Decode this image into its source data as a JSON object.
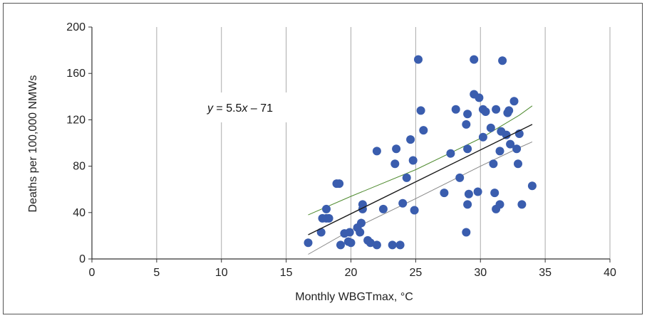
{
  "chart_data": {
    "type": "scatter",
    "title": "",
    "xlabel": "Monthly WBGTmax, °C",
    "ylabel": "Deaths per 100,000 NMWs",
    "xlim": [
      0,
      40
    ],
    "ylim": [
      0,
      200
    ],
    "x_ticks": [
      "0",
      "5",
      "10",
      "15",
      "20",
      "25",
      "30",
      "35",
      "40"
    ],
    "y_ticks": [
      "0",
      "40",
      "80",
      "120",
      "160",
      "200"
    ],
    "grid": "vertical",
    "annotation": {
      "prefix": "y",
      "middle": " = 5.5",
      "var": "x",
      "suffix": " – 71"
    },
    "regression": {
      "slope": 5.5,
      "intercept": -71,
      "x_range": [
        16.7,
        34
      ]
    },
    "confidence_upper": [
      [
        16.7,
        38
      ],
      [
        20,
        54
      ],
      [
        25,
        77
      ],
      [
        30,
        104
      ],
      [
        33,
        124
      ],
      [
        34,
        132
      ]
    ],
    "confidence_lower": [
      [
        16.7,
        4
      ],
      [
        20,
        25
      ],
      [
        25,
        52
      ],
      [
        30,
        80
      ],
      [
        33,
        96
      ],
      [
        34,
        101
      ]
    ],
    "colors": {
      "points": "#3A5DAE",
      "regression": "#1a1a1a",
      "upper_band": "#4E8A2E",
      "lower_band": "#888888",
      "grid": "#aaaaaa"
    },
    "points": [
      [
        16.7,
        14
      ],
      [
        17.7,
        23
      ],
      [
        17.8,
        35
      ],
      [
        18.1,
        43
      ],
      [
        18.1,
        35
      ],
      [
        18.3,
        35
      ],
      [
        18.9,
        65
      ],
      [
        19.1,
        65
      ],
      [
        19.2,
        12
      ],
      [
        19.5,
        22
      ],
      [
        19.8,
        15
      ],
      [
        19.9,
        23
      ],
      [
        20.0,
        14
      ],
      [
        20.5,
        27
      ],
      [
        20.7,
        23
      ],
      [
        20.8,
        31
      ],
      [
        20.9,
        43
      ],
      [
        20.9,
        47
      ],
      [
        21.3,
        16
      ],
      [
        21.5,
        14
      ],
      [
        22.0,
        93
      ],
      [
        22.0,
        12
      ],
      [
        22.5,
        43
      ],
      [
        23.2,
        12
      ],
      [
        23.4,
        82
      ],
      [
        23.5,
        95
      ],
      [
        23.8,
        12
      ],
      [
        24.0,
        48
      ],
      [
        24.3,
        70
      ],
      [
        24.6,
        103
      ],
      [
        24.8,
        85
      ],
      [
        24.9,
        42
      ],
      [
        25.2,
        172
      ],
      [
        25.4,
        128
      ],
      [
        25.6,
        111
      ],
      [
        27.2,
        57
      ],
      [
        27.7,
        91
      ],
      [
        28.1,
        129
      ],
      [
        28.4,
        70
      ],
      [
        28.9,
        116
      ],
      [
        29.0,
        95
      ],
      [
        29.0,
        125
      ],
      [
        29.0,
        47
      ],
      [
        29.1,
        56
      ],
      [
        28.9,
        23
      ],
      [
        29.5,
        172
      ],
      [
        29.5,
        142
      ],
      [
        29.8,
        58
      ],
      [
        29.9,
        139
      ],
      [
        30.2,
        129
      ],
      [
        30.2,
        105
      ],
      [
        30.4,
        127
      ],
      [
        30.8,
        113
      ],
      [
        31.0,
        82
      ],
      [
        31.1,
        57
      ],
      [
        31.2,
        43
      ],
      [
        31.2,
        129
      ],
      [
        31.5,
        47
      ],
      [
        31.5,
        93
      ],
      [
        31.6,
        110
      ],
      [
        31.7,
        171
      ],
      [
        32.0,
        107
      ],
      [
        32.1,
        126
      ],
      [
        32.2,
        128
      ],
      [
        32.3,
        99
      ],
      [
        32.6,
        136
      ],
      [
        32.8,
        95
      ],
      [
        32.9,
        82
      ],
      [
        33.0,
        108
      ],
      [
        33.2,
        47
      ],
      [
        34.0,
        63
      ]
    ]
  }
}
